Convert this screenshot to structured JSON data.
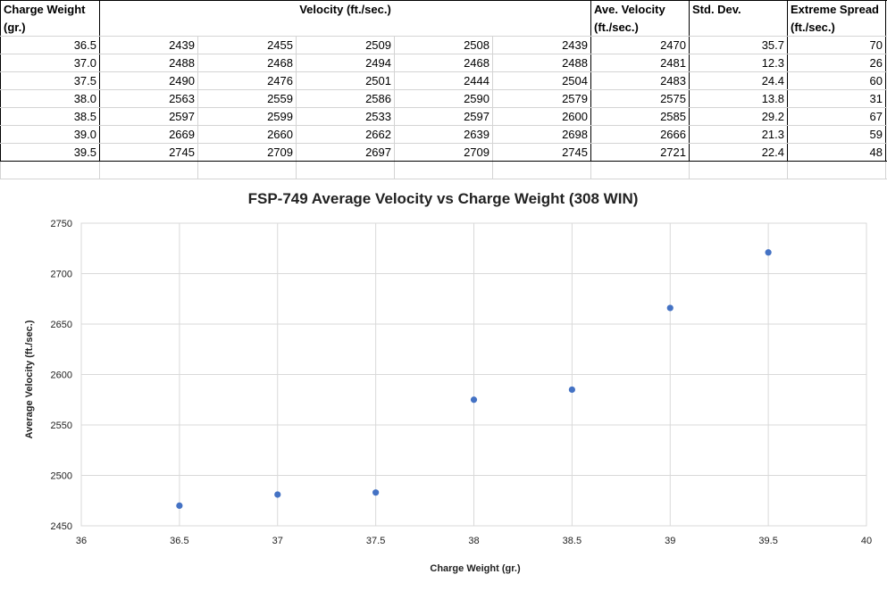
{
  "table": {
    "headers": {
      "charge": [
        "Charge Weight",
        "(gr.)"
      ],
      "velocity": "Velocity (ft./sec.)",
      "ave": [
        "Ave. Velocity",
        "(ft./sec.)"
      ],
      "std": "Std. Dev.",
      "spread": [
        "Extreme Spread",
        "(ft./sec.)"
      ]
    },
    "rows": [
      {
        "charge": "36.5",
        "v": [
          "2439",
          "2455",
          "2509",
          "2508",
          "2439"
        ],
        "ave": "2470",
        "std": "35.7",
        "spread": "70"
      },
      {
        "charge": "37.0",
        "v": [
          "2488",
          "2468",
          "2494",
          "2468",
          "2488"
        ],
        "ave": "2481",
        "std": "12.3",
        "spread": "26"
      },
      {
        "charge": "37.5",
        "v": [
          "2490",
          "2476",
          "2501",
          "2444",
          "2504"
        ],
        "ave": "2483",
        "std": "24.4",
        "spread": "60"
      },
      {
        "charge": "38.0",
        "v": [
          "2563",
          "2559",
          "2586",
          "2590",
          "2579"
        ],
        "ave": "2575",
        "std": "13.8",
        "spread": "31"
      },
      {
        "charge": "38.5",
        "v": [
          "2597",
          "2599",
          "2533",
          "2597",
          "2600"
        ],
        "ave": "2585",
        "std": "29.2",
        "spread": "67"
      },
      {
        "charge": "39.0",
        "v": [
          "2669",
          "2660",
          "2662",
          "2639",
          "2698"
        ],
        "ave": "2666",
        "std": "21.3",
        "spread": "59"
      },
      {
        "charge": "39.5",
        "v": [
          "2745",
          "2709",
          "2697",
          "2709",
          "2745"
        ],
        "ave": "2721",
        "std": "22.4",
        "spread": "48"
      }
    ]
  },
  "chart_data": {
    "type": "scatter",
    "title": "FSP-749 Average Velocity vs Charge Weight (308 WIN)",
    "xlabel": "Charge Weight (gr.)",
    "ylabel": "Average Velocity (ft./sec.)",
    "xlim": [
      36,
      40
    ],
    "ylim": [
      2450,
      2750
    ],
    "xticks": [
      "36",
      "36.5",
      "37",
      "37.5",
      "38",
      "38.5",
      "39",
      "39.5",
      "40"
    ],
    "yticks": [
      "2450",
      "2500",
      "2550",
      "2600",
      "2650",
      "2700",
      "2750"
    ],
    "grid": true,
    "marker_color": "#4472c4",
    "series": [
      {
        "x": [
          36.5,
          37.0,
          37.5,
          38.0,
          38.5,
          39.0,
          39.5
        ],
        "y": [
          2470,
          2481,
          2483,
          2575,
          2585,
          2666,
          2721
        ]
      }
    ]
  }
}
